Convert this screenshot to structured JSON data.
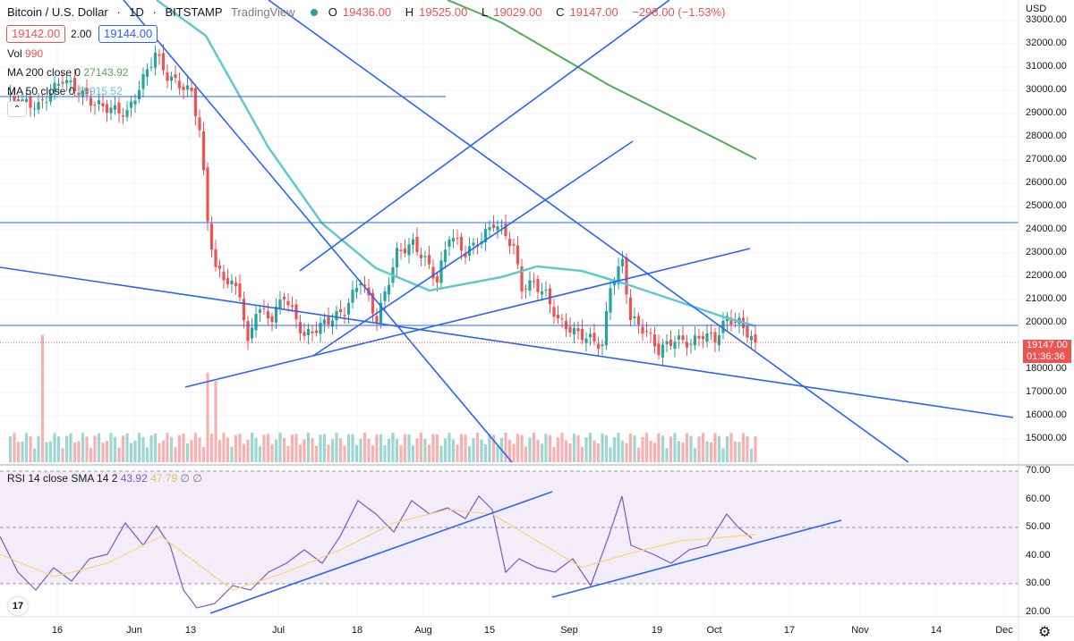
{
  "header": {
    "symbol": "Bitcoin / U.S. Dollar",
    "interval": "1D",
    "exchange": "BITSTAMP",
    "brand": "TradingView",
    "ohlc": [
      {
        "k": "O",
        "v": "19436.00"
      },
      {
        "k": "H",
        "v": "19525.00"
      },
      {
        "k": "L",
        "v": "19029.00"
      },
      {
        "k": "C",
        "v": "19147.00"
      }
    ],
    "change": "−298.00 (−1.53%)"
  },
  "quote": {
    "bid": "19142.00",
    "spread": "2.00",
    "ask": "19144.00"
  },
  "indicators": {
    "vol_label": "Vol",
    "vol_value": "990",
    "ma200_label": "MA 200 close 0",
    "ma200_value": "27143.92",
    "ma50_label": "MA 50 close 0",
    "ma50_value": "19915.52",
    "rsi_label": "RSI 14 close SMA 14 2",
    "rsi_value": "43.92",
    "rsi_sma_value": "47.79",
    "rsi_extra": "∅ ∅"
  },
  "price_axis": {
    "currency": "USD",
    "labels": [
      "33000.00",
      "32000.00",
      "31000.00",
      "30000.00",
      "29000.00",
      "28000.00",
      "27000.00",
      "26000.00",
      "25000.00",
      "24000.00",
      "23000.00",
      "22000.00",
      "21000.00",
      "20000.00",
      "19000.00",
      "18000.00",
      "17000.00",
      "16000.00",
      "15000.00"
    ],
    "current_price": "19147.00",
    "countdown": "01:36:36"
  },
  "rsi_axis": {
    "labels": [
      "70.00",
      "60.00",
      "50.00",
      "40.00",
      "30.00",
      "20.00"
    ]
  },
  "time_axis": {
    "labels": [
      "16",
      "Jun",
      "13",
      "Jul",
      "18",
      "Aug",
      "15",
      "Sep",
      "19",
      "Oct",
      "17",
      "Nov",
      "14",
      "Dec"
    ]
  },
  "colors": {
    "up": "#26a69a",
    "down": "#ef5350",
    "ma50": "#5fc9d0",
    "ma200": "#4caf50",
    "drawing": "#2962ff",
    "rsi": "#7e57c2",
    "rsi_sma": "#f5d87a"
  },
  "icons": {
    "collapse": "chevron-up-icon",
    "logo": "tradingview-logo-icon",
    "settings": "gear-icon"
  }
}
